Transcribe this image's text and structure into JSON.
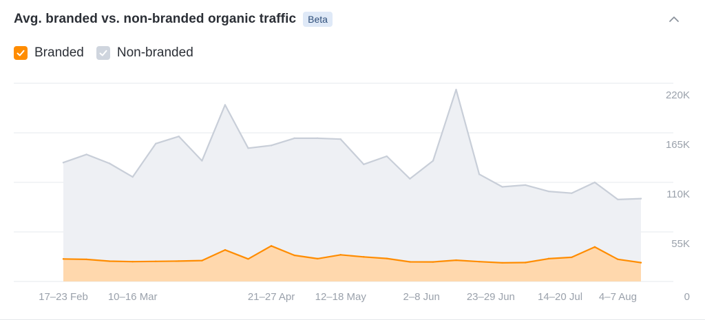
{
  "header": {
    "title": "Avg. branded vs. non-branded organic traffic",
    "badge": "Beta"
  },
  "legend": {
    "items": [
      {
        "label": "Branded",
        "checked": true,
        "color": "#ff8c00"
      },
      {
        "label": "Non-branded",
        "checked": true,
        "color": "#cfd5de"
      }
    ]
  },
  "icons": {
    "collapse": "chevron-up-icon",
    "check": "check-icon"
  },
  "colors": {
    "branded_line": "#ff8c00",
    "branded_fill": "#ffd8ad",
    "nonbranded_line": "#c8ced8",
    "nonbranded_fill": "#eef0f4",
    "grid": "#e6e8ec",
    "tick_text": "#9aa1ab"
  },
  "chart_data": {
    "type": "area",
    "title": "Avg. branded vs. non-branded organic traffic",
    "ylim": [
      0,
      220000
    ],
    "y_ticks": [
      {
        "value": 0,
        "label": "0"
      },
      {
        "value": 55000,
        "label": "55K"
      },
      {
        "value": 110000,
        "label": "110K"
      },
      {
        "value": 165000,
        "label": "165K"
      },
      {
        "value": 220000,
        "label": "220K"
      }
    ],
    "x_ticks": [
      {
        "index": 0,
        "label": "17–23 Feb"
      },
      {
        "index": 3,
        "label": "10–16 Mar"
      },
      {
        "index": 9,
        "label": "21–27 Apr"
      },
      {
        "index": 12,
        "label": "12–18 May"
      },
      {
        "index": 15.5,
        "label": "2–8 Jun"
      },
      {
        "index": 18.5,
        "label": "23–29 Jun"
      },
      {
        "index": 21.5,
        "label": "14–20 Jul"
      },
      {
        "index": 24,
        "label": "4–7 Aug"
      }
    ],
    "grid": true,
    "legend_position": "top-left",
    "series": [
      {
        "name": "Non-branded",
        "values": [
          132000,
          141000,
          131000,
          116000,
          153000,
          161000,
          134000,
          196000,
          148000,
          151000,
          159000,
          159000,
          158000,
          130000,
          139000,
          114000,
          134000,
          213000,
          119000,
          105000,
          107000,
          100000,
          98000,
          110000,
          91000,
          92000
        ]
      },
      {
        "name": "Branded",
        "values": [
          25000,
          24500,
          22500,
          22000,
          22300,
          22600,
          23200,
          35000,
          25000,
          39500,
          29000,
          25300,
          29600,
          27300,
          25500,
          21800,
          21700,
          23600,
          22000,
          20700,
          21000,
          25300,
          26800,
          38300,
          24600,
          20900
        ]
      }
    ]
  }
}
